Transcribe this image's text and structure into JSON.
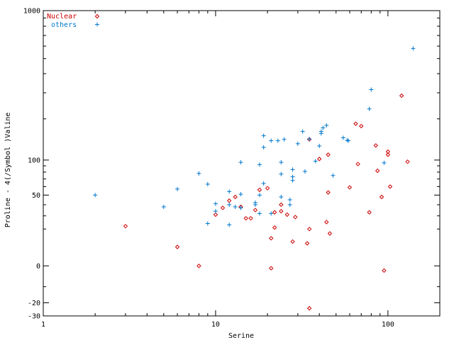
{
  "chart_data": {
    "type": "scatter",
    "xlabel": "Serine",
    "ylabel": "Proline - 4(/Symbol  )Valine",
    "xscale": "log",
    "yscale": "symlog",
    "xlim": [
      1,
      200
    ],
    "ylim": [
      -30,
      1000
    ],
    "grid": false,
    "legend_position": "top-left",
    "x_ticks": [
      {
        "value": 1,
        "label": "1"
      },
      {
        "value": 10,
        "label": "10"
      },
      {
        "value": 100,
        "label": "100"
      }
    ],
    "y_ticks": [
      {
        "value": 1000,
        "label": "1000"
      },
      {
        "value": 100,
        "label": "100"
      },
      {
        "value": 50,
        "label": "50"
      },
      {
        "value": 0,
        "label": "0"
      },
      {
        "value": -20,
        "label": "-20"
      },
      {
        "value": -30,
        "label": "-30"
      }
    ],
    "series": [
      {
        "name": "Nuclear",
        "marker": "diamond",
        "color": "#cc0000",
        "points": [
          [
            3,
            22
          ],
          [
            6,
            9
          ],
          [
            8,
            0
          ],
          [
            10,
            31
          ],
          [
            11,
            37
          ],
          [
            12,
            44
          ],
          [
            13,
            48
          ],
          [
            14,
            38
          ],
          [
            15,
            28
          ],
          [
            16,
            28
          ],
          [
            17,
            35
          ],
          [
            18,
            56
          ],
          [
            20,
            58
          ],
          [
            21,
            14
          ],
          [
            21,
            -1
          ],
          [
            22,
            33
          ],
          [
            22,
            21
          ],
          [
            24,
            40
          ],
          [
            24,
            34
          ],
          [
            26,
            31
          ],
          [
            28,
            12
          ],
          [
            29,
            29
          ],
          [
            34,
            11
          ],
          [
            35,
            20
          ],
          [
            35,
            -24
          ],
          [
            35,
            143
          ],
          [
            40,
            102
          ],
          [
            44,
            25
          ],
          [
            45,
            53
          ],
          [
            45,
            110
          ],
          [
            46,
            17
          ],
          [
            60,
            59
          ],
          [
            65,
            185
          ],
          [
            67,
            93
          ],
          [
            70,
            178
          ],
          [
            78,
            33
          ],
          [
            85,
            129
          ],
          [
            87,
            82
          ],
          [
            92,
            48
          ],
          [
            95,
            -2
          ],
          [
            100,
            110
          ],
          [
            100,
            116
          ],
          [
            103,
            60
          ],
          [
            120,
            287
          ],
          [
            130,
            97
          ]
        ]
      },
      {
        "name": "others",
        "marker": "plus",
        "color": "#0077cc",
        "points": [
          [
            2,
            50
          ],
          [
            5,
            38
          ],
          [
            6,
            57
          ],
          [
            8,
            78
          ],
          [
            9,
            24
          ],
          [
            9,
            63
          ],
          [
            10,
            34
          ],
          [
            10,
            41
          ],
          [
            12,
            23
          ],
          [
            12,
            40
          ],
          [
            12,
            54
          ],
          [
            13,
            38
          ],
          [
            14,
            37
          ],
          [
            14,
            51
          ],
          [
            14,
            96
          ],
          [
            17,
            42
          ],
          [
            17,
            40
          ],
          [
            18,
            32
          ],
          [
            18,
            50
          ],
          [
            18,
            92
          ],
          [
            19,
            64
          ],
          [
            19,
            125
          ],
          [
            19,
            152
          ],
          [
            21,
            32
          ],
          [
            21,
            140
          ],
          [
            23,
            140
          ],
          [
            24,
            48
          ],
          [
            24,
            77
          ],
          [
            24,
            96
          ],
          [
            25,
            143
          ],
          [
            27,
            40
          ],
          [
            27,
            45
          ],
          [
            28,
            68
          ],
          [
            28,
            73
          ],
          [
            28,
            84
          ],
          [
            30,
            133
          ],
          [
            32,
            163
          ],
          [
            33,
            81
          ],
          [
            35,
            144
          ],
          [
            38,
            98
          ],
          [
            40,
            128
          ],
          [
            41,
            158
          ],
          [
            41,
            163
          ],
          [
            42,
            173
          ],
          [
            44,
            180
          ],
          [
            48,
            75
          ],
          [
            55,
            147
          ],
          [
            58,
            141
          ],
          [
            59,
            140
          ],
          [
            78,
            234
          ],
          [
            80,
            315
          ],
          [
            95,
            95
          ],
          [
            140,
            580
          ]
        ]
      }
    ]
  }
}
